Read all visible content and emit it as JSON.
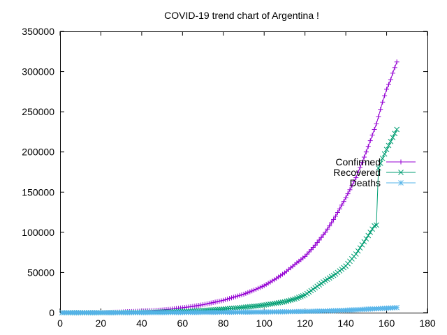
{
  "chart_data": {
    "type": "line",
    "title": "COVID-19 trend chart of Argentina !",
    "xlabel": "",
    "ylabel": "",
    "xlim": [
      0,
      180
    ],
    "ylim": [
      0,
      350000
    ],
    "x_ticks": [
      0,
      20,
      40,
      60,
      80,
      100,
      120,
      140,
      160,
      180
    ],
    "y_ticks": [
      0,
      50000,
      100000,
      150000,
      200000,
      250000,
      300000,
      350000
    ],
    "grid": false,
    "legend_position": "right",
    "series": [
      {
        "name": "Confirmed",
        "color": "#9400d3",
        "marker": "plus",
        "points": [
          [
            1,
            1
          ],
          [
            10,
            12
          ],
          [
            20,
            97
          ],
          [
            30,
            820
          ],
          [
            40,
            1980
          ],
          [
            50,
            3300
          ],
          [
            55,
            4600
          ],
          [
            60,
            6100
          ],
          [
            65,
            7800
          ],
          [
            70,
            9900
          ],
          [
            75,
            12600
          ],
          [
            80,
            15400
          ],
          [
            85,
            19200
          ],
          [
            90,
            23000
          ],
          [
            95,
            28000
          ],
          [
            100,
            33600
          ],
          [
            105,
            41000
          ],
          [
            110,
            49500
          ],
          [
            115,
            60000
          ],
          [
            120,
            70000
          ],
          [
            125,
            84000
          ],
          [
            130,
            100000
          ],
          [
            135,
            120000
          ],
          [
            140,
            143000
          ],
          [
            145,
            168000
          ],
          [
            150,
            200000
          ],
          [
            155,
            235000
          ],
          [
            158,
            262000
          ],
          [
            160,
            278000
          ],
          [
            162,
            290000
          ],
          [
            163,
            298000
          ],
          [
            165,
            312000
          ]
        ]
      },
      {
        "name": "Recovered",
        "color": "#009e73",
        "marker": "cross",
        "points": [
          [
            1,
            0
          ],
          [
            20,
            5
          ],
          [
            30,
            200
          ],
          [
            40,
            400
          ],
          [
            50,
            900
          ],
          [
            55,
            1200
          ],
          [
            60,
            1600
          ],
          [
            65,
            2100
          ],
          [
            70,
            2800
          ],
          [
            75,
            3600
          ],
          [
            80,
            4600
          ],
          [
            85,
            5600
          ],
          [
            90,
            6700
          ],
          [
            95,
            8000
          ],
          [
            100,
            9500
          ],
          [
            105,
            11500
          ],
          [
            110,
            13500
          ],
          [
            115,
            17000
          ],
          [
            120,
            22000
          ],
          [
            125,
            31000
          ],
          [
            130,
            40000
          ],
          [
            135,
            48000
          ],
          [
            140,
            58000
          ],
          [
            145,
            73000
          ],
          [
            150,
            92000
          ],
          [
            154,
            108000
          ],
          [
            155,
            109000
          ],
          [
            156,
            180000
          ],
          [
            158,
            192000
          ],
          [
            160,
            203000
          ],
          [
            163,
            218000
          ],
          [
            165,
            228000
          ]
        ]
      },
      {
        "name": "Deaths",
        "color": "#56b4e9",
        "marker": "star",
        "points": [
          [
            1,
            0
          ],
          [
            20,
            3
          ],
          [
            30,
            36
          ],
          [
            40,
            83
          ],
          [
            50,
            160
          ],
          [
            60,
            260
          ],
          [
            70,
            380
          ],
          [
            80,
            520
          ],
          [
            90,
            650
          ],
          [
            100,
            820
          ],
          [
            110,
            1100
          ],
          [
            120,
            1500
          ],
          [
            130,
            2100
          ],
          [
            140,
            3000
          ],
          [
            145,
            3600
          ],
          [
            150,
            4300
          ],
          [
            155,
            4900
          ],
          [
            160,
            5600
          ],
          [
            165,
            6300
          ]
        ]
      }
    ]
  }
}
